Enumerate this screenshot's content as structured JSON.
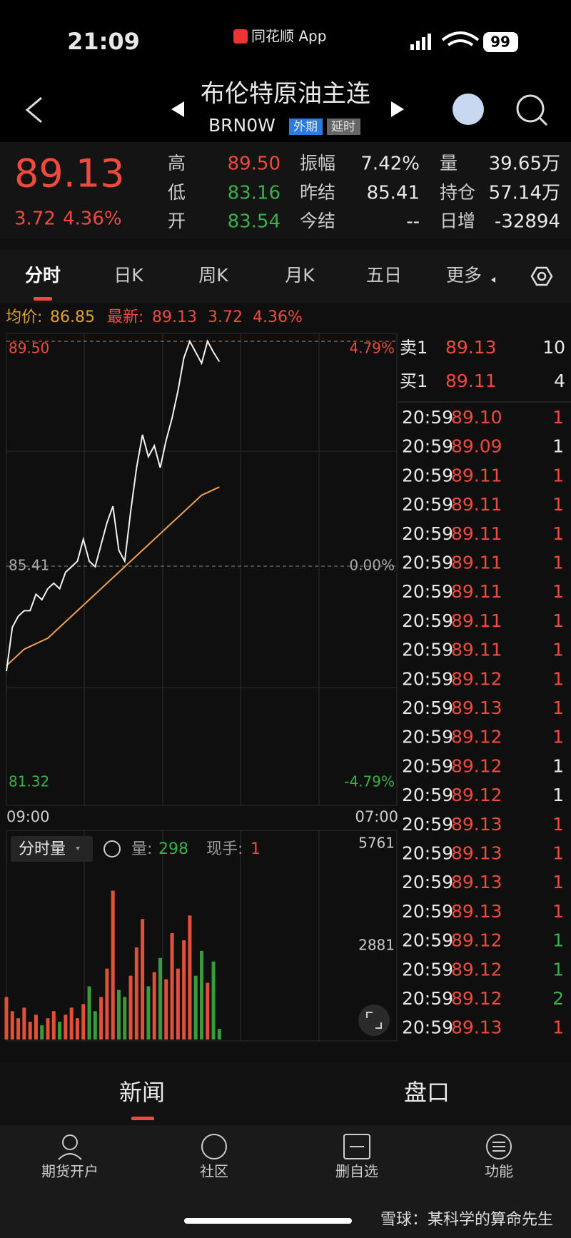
{
  "status": {
    "time": "21:09",
    "app": "同花顺 App",
    "battery": "99"
  },
  "header": {
    "title": "布伦特原油主连",
    "code": "BRN0W",
    "tags": [
      "外期",
      "延时"
    ]
  },
  "quote": {
    "price": "89.13",
    "change": "3.72",
    "pct": "4.36%",
    "stats": [
      [
        {
          "label": "高",
          "value": "89.50",
          "color": "#f04a3e"
        },
        {
          "label": "振幅",
          "value": "7.42%",
          "color": "#e8e8e8"
        },
        {
          "label": "量",
          "value": "39.65万",
          "color": "#e8e8e8"
        }
      ],
      [
        {
          "label": "低",
          "value": "83.16",
          "color": "#3ab04a"
        },
        {
          "label": "昨结",
          "value": "85.41",
          "color": "#e8e8e8"
        },
        {
          "label": "持仓",
          "value": "57.14万",
          "color": "#e8e8e8"
        }
      ],
      [
        {
          "label": "开",
          "value": "83.54",
          "color": "#3ab04a"
        },
        {
          "label": "今结",
          "value": "--",
          "color": "#e8e8e8"
        },
        {
          "label": "日增",
          "value": "-32894",
          "color": "#e8e8e8"
        }
      ]
    ]
  },
  "tabs": [
    "分时",
    "日K",
    "周K",
    "月K",
    "五日",
    "更多"
  ],
  "info": {
    "avg_label": "均价:",
    "avg": "86.85",
    "latest_label": "最新:",
    "latest": "89.13",
    "change": "3.72",
    "pct": "4.36%"
  },
  "chart_data": {
    "type": "line",
    "x": [
      0,
      20,
      40,
      60,
      80,
      100,
      120,
      140,
      160,
      180,
      200,
      220,
      240,
      260,
      280,
      300,
      320,
      340,
      360,
      380,
      400,
      420,
      440,
      460,
      480,
      500,
      520,
      540,
      560,
      580,
      600,
      620,
      640,
      660,
      680,
      700,
      720
    ],
    "xlim": [
      0,
      1320
    ],
    "xticks": [
      {
        "value": 0,
        "label": "09:00"
      },
      {
        "value": 1320,
        "label": "07:00"
      }
    ],
    "ylim": [
      81.32,
      89.5
    ],
    "yticks": [
      {
        "value": 89.5,
        "label": "89.50"
      },
      {
        "value": 85.41,
        "label": "85.41"
      },
      {
        "value": 81.32,
        "label": "81.32"
      }
    ],
    "pct_labels": [
      "4.79%",
      "0.00%",
      "-4.79%"
    ],
    "series": [
      {
        "name": "price",
        "color": "#f2f2f2",
        "values": [
          83.5,
          84.3,
          84.5,
          84.6,
          84.6,
          84.9,
          84.8,
          85.0,
          85.1,
          85.0,
          85.3,
          85.4,
          85.5,
          85.9,
          85.5,
          85.4,
          85.8,
          86.2,
          86.5,
          85.7,
          85.5,
          86.4,
          87.2,
          87.8,
          87.4,
          87.6,
          87.2,
          87.7,
          88.1,
          88.6,
          89.2,
          89.5,
          89.3,
          89.1,
          89.5,
          89.3,
          89.13
        ]
      },
      {
        "name": "avg",
        "color": "#f0a050",
        "values": [
          83.6,
          83.7,
          83.8,
          83.9,
          83.95,
          84.0,
          84.05,
          84.1,
          84.2,
          84.3,
          84.4,
          84.5,
          84.6,
          84.7,
          84.8,
          84.9,
          85.0,
          85.1,
          85.2,
          85.3,
          85.4,
          85.5,
          85.6,
          85.7,
          85.8,
          85.9,
          86.0,
          86.1,
          86.2,
          86.3,
          86.4,
          86.5,
          86.6,
          86.7,
          86.75,
          86.8,
          86.85
        ]
      }
    ],
    "volume": {
      "values": [
        1200,
        800,
        600,
        900,
        500,
        700,
        400,
        600,
        800,
        500,
        700,
        900,
        600,
        1000,
        1500,
        800,
        1200,
        2000,
        4200,
        1400,
        1200,
        1800,
        2600,
        3400,
        1500,
        1900,
        2300,
        1700,
        3000,
        2000,
        2800,
        3500,
        1800,
        2500,
        1600,
        2200,
        298
      ],
      "ylim": [
        0,
        5761
      ],
      "yticks": [
        5761,
        2881
      ],
      "up_color": "#e0503a",
      "down_color": "#3a9a40"
    }
  },
  "volume_info": {
    "label": "分时量",
    "vol_label": "量:",
    "vol": "298",
    "hand_label": "现手:",
    "hand": "1"
  },
  "book": [
    {
      "label": "卖1",
      "price": "89.13",
      "size": "10"
    },
    {
      "label": "买1",
      "price": "89.11",
      "size": "4"
    }
  ],
  "trades": [
    {
      "time": "20:59",
      "price": "89.10",
      "size": "1",
      "color": "#f04a3e"
    },
    {
      "time": "20:59",
      "price": "89.09",
      "size": "1",
      "color": "#e8e8e8"
    },
    {
      "time": "20:59",
      "price": "89.11",
      "size": "1",
      "color": "#f04a3e"
    },
    {
      "time": "20:59",
      "price": "89.11",
      "size": "1",
      "color": "#f04a3e"
    },
    {
      "time": "20:59",
      "price": "89.11",
      "size": "1",
      "color": "#f04a3e"
    },
    {
      "time": "20:59",
      "price": "89.11",
      "size": "1",
      "color": "#f04a3e"
    },
    {
      "time": "20:59",
      "price": "89.11",
      "size": "1",
      "color": "#f04a3e"
    },
    {
      "time": "20:59",
      "price": "89.11",
      "size": "1",
      "color": "#f04a3e"
    },
    {
      "time": "20:59",
      "price": "89.11",
      "size": "1",
      "color": "#f04a3e"
    },
    {
      "time": "20:59",
      "price": "89.12",
      "size": "1",
      "color": "#f04a3e"
    },
    {
      "time": "20:59",
      "price": "89.13",
      "size": "1",
      "color": "#f04a3e"
    },
    {
      "time": "20:59",
      "price": "89.12",
      "size": "1",
      "color": "#f04a3e"
    },
    {
      "time": "20:59",
      "price": "89.12",
      "size": "1",
      "color": "#e8e8e8"
    },
    {
      "time": "20:59",
      "price": "89.12",
      "size": "1",
      "color": "#e8e8e8"
    },
    {
      "time": "20:59",
      "price": "89.13",
      "size": "1",
      "color": "#f04a3e"
    },
    {
      "time": "20:59",
      "price": "89.13",
      "size": "1",
      "color": "#f04a3e"
    },
    {
      "time": "20:59",
      "price": "89.13",
      "size": "1",
      "color": "#f04a3e"
    },
    {
      "time": "20:59",
      "price": "89.13",
      "size": "1",
      "color": "#f04a3e"
    },
    {
      "time": "20:59",
      "price": "89.12",
      "size": "1",
      "color": "#3ab04a"
    },
    {
      "time": "20:59",
      "price": "89.12",
      "size": "1",
      "color": "#3ab04a"
    },
    {
      "time": "20:59",
      "price": "89.12",
      "size": "2",
      "color": "#3ab04a"
    },
    {
      "time": "20:59",
      "price": "89.13",
      "size": "1",
      "color": "#f04a3e"
    }
  ],
  "bottom_tabs": [
    "新闻",
    "盘口"
  ],
  "nav": [
    "期货开户",
    "社区",
    "删自选",
    "功能"
  ],
  "watermark": "雪球：某科学的算命先生"
}
